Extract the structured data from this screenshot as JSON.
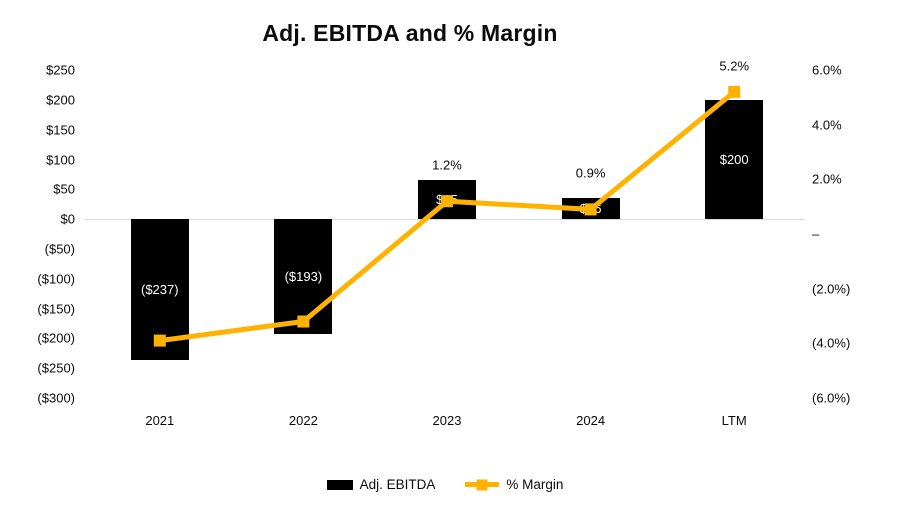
{
  "chart_data": {
    "type": "combo-bar-line",
    "title": "Adj. EBITDA and % Margin",
    "categories": [
      "2021",
      "2022",
      "2023",
      "2024",
      "LTM"
    ],
    "bar_series": {
      "name": "Adj. EBITDA",
      "axis": "left",
      "color": "#000000",
      "values": [
        -237,
        -193,
        65,
        36,
        200
      ],
      "labels": [
        "($237)",
        "($193)",
        "$65",
        "$36",
        "$200"
      ],
      "label_color": "#ffffff"
    },
    "line_series": {
      "name": "% Margin",
      "axis": "right",
      "color": "#FFB300",
      "marker": "square",
      "values": [
        -3.9,
        -3.2,
        1.2,
        0.9,
        5.2
      ],
      "labels": [
        "",
        "",
        "1.2%",
        "0.9%",
        "5.2%"
      ]
    },
    "left_axis": {
      "min": -300,
      "max": 250,
      "step": 50,
      "tick_labels": [
        "$250",
        "$200",
        "$150",
        "$100",
        "$50",
        "$0",
        "($50)",
        "($100)",
        "($150)",
        "($200)",
        "($250)",
        "($300)"
      ]
    },
    "right_axis": {
      "min": -6,
      "max": 6,
      "step": 2,
      "tick_labels": [
        "6.0%",
        "4.0%",
        "2.0%",
        "–",
        "(2.0%)",
        "(4.0%)",
        "(6.0%)"
      ]
    },
    "gridline": {
      "at_value": 0,
      "color": "#DADADA"
    },
    "legend_position": "bottom",
    "background": "#ffffff",
    "text_color": "#0b0b0b"
  }
}
